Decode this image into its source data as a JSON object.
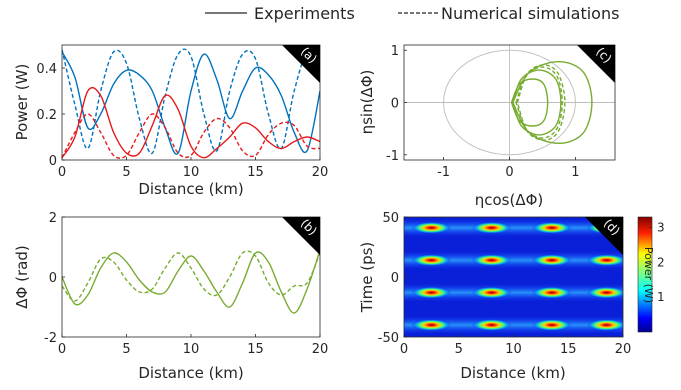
{
  "legend": {
    "solid_label": "Experiments",
    "dashed_label": "Numerical simulations"
  },
  "colors": {
    "blue": "#0072bd",
    "red": "#e41a1c",
    "green": "#77ac30",
    "grey": "#bdbdbd"
  },
  "chart_data": [
    {
      "id": "a",
      "type": "line",
      "panel_tag": "(a)",
      "xlabel": "Distance (km)",
      "ylabel": "Power (W)",
      "xlim": [
        0,
        20
      ],
      "ylim": [
        0,
        0.5
      ],
      "xticks": [
        0,
        5,
        10,
        15,
        20
      ],
      "yticks": [
        0,
        0.2,
        0.4
      ],
      "ytick_labels": [
        "0",
        "0.2",
        "0.4"
      ],
      "series": [
        {
          "color": "blue",
          "dash": false,
          "x": [
            0,
            1,
            2,
            3,
            4,
            5,
            6,
            7,
            8,
            9,
            10,
            11,
            12,
            13,
            14,
            15,
            16,
            17,
            18,
            19,
            20
          ],
          "y": [
            0.47,
            0.36,
            0.14,
            0.2,
            0.33,
            0.39,
            0.37,
            0.3,
            0.14,
            0.03,
            0.3,
            0.46,
            0.35,
            0.18,
            0.3,
            0.4,
            0.37,
            0.28,
            0.12,
            0.04,
            0.3
          ]
        },
        {
          "color": "blue",
          "dash": true,
          "x": [
            0,
            1,
            2,
            3,
            4,
            5,
            6,
            7,
            8,
            9,
            10,
            11,
            12,
            13,
            14,
            15,
            16,
            17,
            18,
            19,
            20
          ],
          "y": [
            0.48,
            0.24,
            0.05,
            0.3,
            0.47,
            0.42,
            0.18,
            0.03,
            0.28,
            0.46,
            0.45,
            0.2,
            0.04,
            0.3,
            0.46,
            0.44,
            0.2,
            0.05,
            0.3,
            0.46,
            0.35
          ]
        },
        {
          "color": "red",
          "dash": false,
          "x": [
            0,
            1,
            2,
            3,
            4,
            5,
            6,
            7,
            8,
            9,
            10,
            11,
            12,
            13,
            14,
            15,
            16,
            17,
            18,
            19,
            20
          ],
          "y": [
            0.01,
            0.1,
            0.3,
            0.28,
            0.12,
            0.03,
            0.03,
            0.15,
            0.28,
            0.22,
            0.06,
            0.01,
            0.05,
            0.1,
            0.16,
            0.14,
            0.08,
            0.05,
            0.08,
            0.1,
            0.08
          ]
        },
        {
          "color": "red",
          "dash": true,
          "x": [
            0,
            1,
            2,
            3,
            4,
            5,
            6,
            7,
            8,
            9,
            10,
            11,
            12,
            13,
            14,
            15,
            16,
            17,
            18,
            19,
            20
          ],
          "y": [
            0.01,
            0.12,
            0.2,
            0.12,
            0.02,
            0.02,
            0.12,
            0.2,
            0.14,
            0.03,
            0.02,
            0.12,
            0.18,
            0.14,
            0.04,
            0.02,
            0.11,
            0.16,
            0.15,
            0.06,
            0.05
          ]
        }
      ]
    },
    {
      "id": "b",
      "type": "line",
      "panel_tag": "(b)",
      "xlabel": "Distance (km)",
      "ylabel": "ΔΦ (rad)",
      "xlim": [
        0,
        20
      ],
      "ylim": [
        -2,
        2
      ],
      "xticks": [
        0,
        5,
        10,
        15,
        20
      ],
      "yticks": [
        -2,
        0,
        2
      ],
      "ytick_labels": [
        "-2",
        "0",
        "2"
      ],
      "series": [
        {
          "color": "green",
          "dash": false,
          "x": [
            0,
            1,
            2,
            3,
            4,
            5,
            6,
            7,
            8,
            9,
            10,
            11,
            12,
            13,
            14,
            15,
            16,
            17,
            18,
            19,
            20
          ],
          "y": [
            0.0,
            -0.9,
            -0.6,
            0.3,
            0.8,
            0.5,
            -0.1,
            -0.5,
            -0.5,
            0.2,
            0.7,
            0.2,
            -0.5,
            -1.0,
            -0.2,
            0.8,
            0.5,
            -0.5,
            -1.2,
            -0.4,
            0.9
          ]
        },
        {
          "color": "green",
          "dash": true,
          "x": [
            0,
            1,
            2,
            3,
            4,
            5,
            6,
            7,
            8,
            9,
            10,
            11,
            12,
            13,
            14,
            15,
            16,
            17,
            18,
            19,
            20
          ],
          "y": [
            -0.3,
            -0.8,
            -0.2,
            0.6,
            0.5,
            -0.1,
            -0.5,
            -0.4,
            0.3,
            0.8,
            0.3,
            -0.4,
            -0.6,
            0.0,
            0.8,
            0.7,
            -0.2,
            -0.6,
            -0.3,
            -0.2,
            0.8
          ]
        }
      ]
    },
    {
      "id": "c",
      "type": "line",
      "panel_tag": "(c)",
      "xlabel": "ηcos(ΔΦ)",
      "ylabel": "ηsin(ΔΦ)",
      "xlim": [
        -1.6,
        1.6
      ],
      "ylim": [
        -1.1,
        1.1
      ],
      "xticks": [
        -1,
        0,
        1
      ],
      "yticks": [
        -1,
        0,
        1
      ],
      "ytick_labels": [
        "-1",
        "0",
        "1"
      ],
      "unit_circle_radius": 1,
      "series": [
        {
          "color": "green",
          "dash": false,
          "x": [
            0.05,
            0.18,
            0.45,
            0.7,
            0.78,
            0.7,
            0.45,
            0.18,
            0.05
          ],
          "y": [
            0.0,
            0.45,
            0.62,
            0.45,
            0.0,
            -0.45,
            -0.62,
            -0.45,
            0.0
          ]
        },
        {
          "color": "green",
          "dash": false,
          "x": [
            0.05,
            0.3,
            0.75,
            1.12,
            1.25,
            1.12,
            0.75,
            0.3,
            0.05
          ],
          "y": [
            0.0,
            0.58,
            0.78,
            0.58,
            0.0,
            -0.58,
            -0.78,
            -0.58,
            0.0
          ]
        },
        {
          "color": "green",
          "dash": false,
          "x": [
            0.03,
            0.15,
            0.35,
            0.52,
            0.58,
            0.52,
            0.35,
            0.15,
            0.03
          ],
          "y": [
            0.0,
            0.35,
            0.45,
            0.35,
            0.0,
            -0.35,
            -0.45,
            -0.35,
            0.0
          ]
        },
        {
          "color": "green",
          "dash": true,
          "x": [
            0.1,
            0.25,
            0.5,
            0.72,
            0.8,
            0.72,
            0.5,
            0.25,
            0.1
          ],
          "y": [
            0.0,
            0.5,
            0.68,
            0.5,
            0.0,
            -0.5,
            -0.68,
            -0.5,
            0.0
          ]
        },
        {
          "color": "green",
          "dash": true,
          "x": [
            0.12,
            0.27,
            0.52,
            0.74,
            0.84,
            0.74,
            0.52,
            0.27,
            0.12
          ],
          "y": [
            0.0,
            0.55,
            0.72,
            0.55,
            0.0,
            -0.55,
            -0.72,
            -0.55,
            0.0
          ]
        }
      ]
    },
    {
      "id": "d",
      "type": "heatmap",
      "panel_tag": "(d)",
      "xlabel": "Distance (km)",
      "ylabel": "Time (ps)",
      "xlim": [
        0,
        20
      ],
      "ylim": [
        -50,
        50
      ],
      "xticks": [
        0,
        5,
        10,
        15,
        20
      ],
      "yticks": [
        -50,
        0,
        50
      ],
      "ytick_labels": [
        "-50",
        "0",
        "50"
      ],
      "pulse_times_ps": [
        -40,
        -13,
        14,
        41
      ],
      "peak_distances_km": [
        2.5,
        8,
        13.5,
        18.5
      ],
      "colorbar": {
        "label": "Power (W)",
        "min": 0,
        "max": 3.3,
        "ticks": [
          1,
          2,
          3
        ]
      }
    }
  ]
}
